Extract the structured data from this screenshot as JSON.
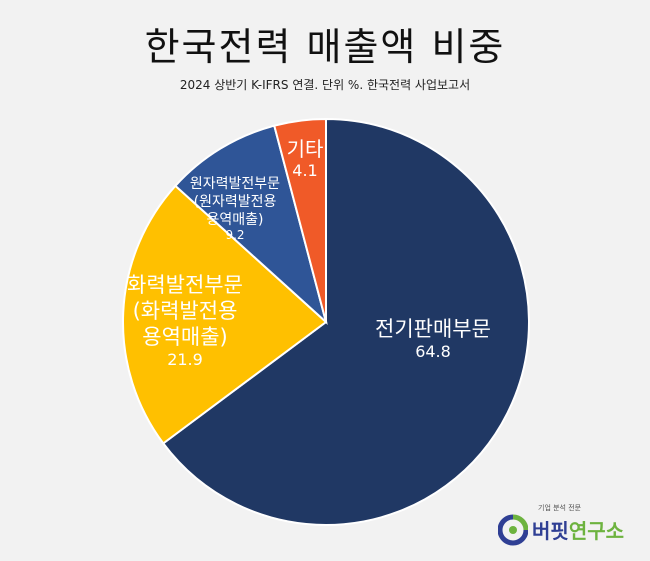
{
  "title": "한국전력 매출액 비중",
  "subtitle": "2024 상반기 K-IFRS 연결. 단위 %. 한국전력 사업보고서",
  "chart_data": {
    "type": "pie",
    "title": "한국전력 매출액 비중",
    "subtitle": "2024 상반기 K-IFRS 연결. 단위 %. 한국전력 사업보고서",
    "start_angle_deg": 0,
    "direction": "clockwise",
    "slices": [
      {
        "label_lines": [
          "전기판매부문"
        ],
        "value": 64.8,
        "value_label": "64.8",
        "color": "#203864"
      },
      {
        "label_lines": [
          "화력발전부문",
          "(화력발전용",
          "용역매출)"
        ],
        "value": 21.9,
        "value_label": "21.9",
        "color": "#ffc000"
      },
      {
        "label_lines": [
          "원자력발전부문",
          "(원자력발전용",
          "용역매출)"
        ],
        "value": 9.2,
        "value_label": "9.2",
        "color": "#2f5597"
      },
      {
        "label_lines": [
          "기타"
        ],
        "value": 4.1,
        "value_label": "4.1",
        "color": "#f05a28"
      }
    ]
  },
  "logo": {
    "tagline": "기업 분석 전문",
    "name_main": "버핏",
    "name_accent": "연구소"
  }
}
